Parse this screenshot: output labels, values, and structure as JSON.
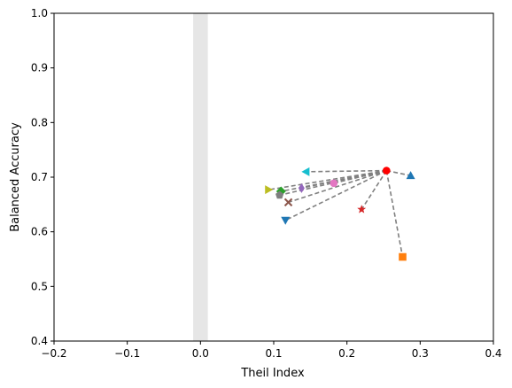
{
  "chart_data": {
    "type": "scatter",
    "title": "",
    "xlabel": "Theil Index",
    "ylabel": "Balanced Accuracy",
    "xlim": [
      -0.2,
      0.4
    ],
    "ylim": [
      0.4,
      1.0
    ],
    "xticks": [
      -0.2,
      -0.1,
      0.0,
      0.1,
      0.2,
      0.3,
      0.4
    ],
    "xtick_labels": [
      "−0.2",
      "−0.1",
      "0.0",
      "0.1",
      "0.2",
      "0.3",
      "0.4"
    ],
    "yticks": [
      0.4,
      0.5,
      0.6,
      0.7,
      0.8,
      0.9,
      1.0
    ],
    "ytick_labels": [
      "0.4",
      "0.5",
      "0.6",
      "0.7",
      "0.8",
      "0.9",
      "1.0"
    ],
    "grid": false,
    "shaded_band": {
      "x": [
        -0.01,
        0.01
      ],
      "color": "#e6e6e6"
    },
    "connector_style": {
      "color": "#808080",
      "dash": "dashed"
    },
    "baseline_point": {
      "x": 0.254,
      "y": 0.712,
      "marker": "circle",
      "color": "#ff0000"
    },
    "points": [
      {
        "x": 0.287,
        "y": 0.703,
        "marker": "triangle-up",
        "color": "#1f77b4"
      },
      {
        "x": 0.276,
        "y": 0.554,
        "marker": "square",
        "color": "#ff7f0e"
      },
      {
        "x": 0.11,
        "y": 0.674,
        "marker": "diamond",
        "color": "#2ca02c"
      },
      {
        "x": 0.22,
        "y": 0.641,
        "marker": "star",
        "color": "#d62728"
      },
      {
        "x": 0.138,
        "y": 0.68,
        "marker": "thin-diamond",
        "color": "#9467bd"
      },
      {
        "x": 0.12,
        "y": 0.654,
        "marker": "x",
        "color": "#8c564b"
      },
      {
        "x": 0.182,
        "y": 0.689,
        "marker": "circle",
        "color": "#e377c2"
      },
      {
        "x": 0.108,
        "y": 0.667,
        "marker": "pentagon",
        "color": "#7f7f7f"
      },
      {
        "x": 0.093,
        "y": 0.677,
        "marker": "triangle-right",
        "color": "#bcbd22"
      },
      {
        "x": 0.144,
        "y": 0.71,
        "marker": "triangle-left",
        "color": "#17becf"
      },
      {
        "x": 0.116,
        "y": 0.621,
        "marker": "triangle-down",
        "color": "#1f77b4"
      }
    ]
  }
}
